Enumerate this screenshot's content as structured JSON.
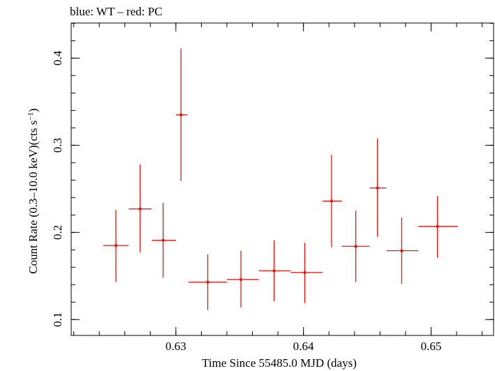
{
  "chart_data": {
    "type": "scatter",
    "title": "blue: WT – red: PC",
    "xlabel": "Time Since 55485.0 MJD (days)",
    "ylabel_main": "Count Rate (0.3–10.0 keV)(cts s",
    "ylabel_sup": "−1",
    "ylabel_end": ")",
    "xlim": [
      0.6218,
      0.6549
    ],
    "ylim": [
      0.0818,
      0.4403
    ],
    "xticks_major": [
      0.63,
      0.64,
      0.65
    ],
    "xtick_labels": [
      "0.63",
      "0.64",
      "0.65"
    ],
    "yticks_major": [
      0.1,
      0.2,
      0.3,
      0.4
    ],
    "ytick_labels": [
      "0.1",
      "0.2",
      "0.3",
      "0.4"
    ],
    "grid": false,
    "series": [
      {
        "color": "#e8160f",
        "points": [
          {
            "x": 0.6253,
            "xlo": 0.6243,
            "xhi": 0.6263,
            "y": 0.185,
            "ylo": 0.143,
            "yhi": 0.226
          },
          {
            "x": 0.6272,
            "xlo": 0.6263,
            "xhi": 0.6281,
            "y": 0.227,
            "ylo": 0.177,
            "yhi": 0.278
          },
          {
            "x": 0.629,
            "xlo": 0.6281,
            "xhi": 0.63,
            "y": 0.191,
            "ylo": 0.148,
            "yhi": 0.234
          },
          {
            "x": 0.6304,
            "xlo": 0.63,
            "xhi": 0.6309,
            "y": 0.335,
            "ylo": 0.259,
            "yhi": 0.411
          },
          {
            "x": 0.6325,
            "xlo": 0.631,
            "xhi": 0.634,
            "y": 0.143,
            "ylo": 0.111,
            "yhi": 0.175
          },
          {
            "x": 0.6351,
            "xlo": 0.634,
            "xhi": 0.6365,
            "y": 0.146,
            "ylo": 0.114,
            "yhi": 0.179
          },
          {
            "x": 0.6377,
            "xlo": 0.6365,
            "xhi": 0.639,
            "y": 0.156,
            "ylo": 0.121,
            "yhi": 0.191
          },
          {
            "x": 0.6401,
            "xlo": 0.639,
            "xhi": 0.6415,
            "y": 0.154,
            "ylo": 0.119,
            "yhi": 0.188
          },
          {
            "x": 0.6422,
            "xlo": 0.6415,
            "xhi": 0.643,
            "y": 0.236,
            "ylo": 0.183,
            "yhi": 0.289
          },
          {
            "x": 0.6441,
            "xlo": 0.643,
            "xhi": 0.6452,
            "y": 0.184,
            "ylo": 0.143,
            "yhi": 0.225
          },
          {
            "x": 0.6458,
            "xlo": 0.6452,
            "xhi": 0.6465,
            "y": 0.251,
            "ylo": 0.195,
            "yhi": 0.308
          },
          {
            "x": 0.6477,
            "xlo": 0.6465,
            "xhi": 0.649,
            "y": 0.179,
            "ylo": 0.141,
            "yhi": 0.217
          },
          {
            "x": 0.6505,
            "xlo": 0.649,
            "xhi": 0.6521,
            "y": 0.207,
            "ylo": 0.171,
            "yhi": 0.242
          }
        ]
      }
    ]
  }
}
